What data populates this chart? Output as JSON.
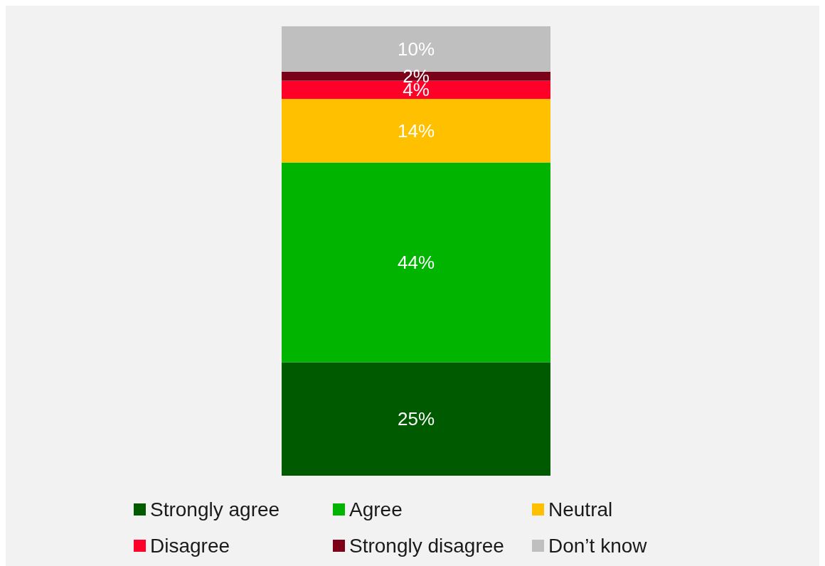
{
  "chart_data": {
    "type": "bar",
    "stacked": true,
    "legend": "bottom",
    "categories": [
      null
    ],
    "series": [
      {
        "name": "Strongly agree",
        "color": "#005a00",
        "values": [
          25
        ],
        "value_labels": [
          "25%"
        ]
      },
      {
        "name": "Agree",
        "color": "#00b400",
        "values": [
          44
        ],
        "value_labels": [
          "44%"
        ]
      },
      {
        "name": "Neutral",
        "color": "#ffc000",
        "values": [
          14
        ],
        "value_labels": [
          "14%"
        ]
      },
      {
        "name": "Disagree",
        "color": "#ff0029",
        "values": [
          4
        ],
        "value_labels": [
          "4%"
        ]
      },
      {
        "name": "Strongly disagree",
        "color": "#7b0018",
        "values": [
          2
        ],
        "value_labels": [
          "2%"
        ]
      },
      {
        "name": "Don’t know",
        "color": "#bfbfbf",
        "values": [
          10
        ],
        "value_labels": [
          "10%"
        ]
      }
    ]
  }
}
